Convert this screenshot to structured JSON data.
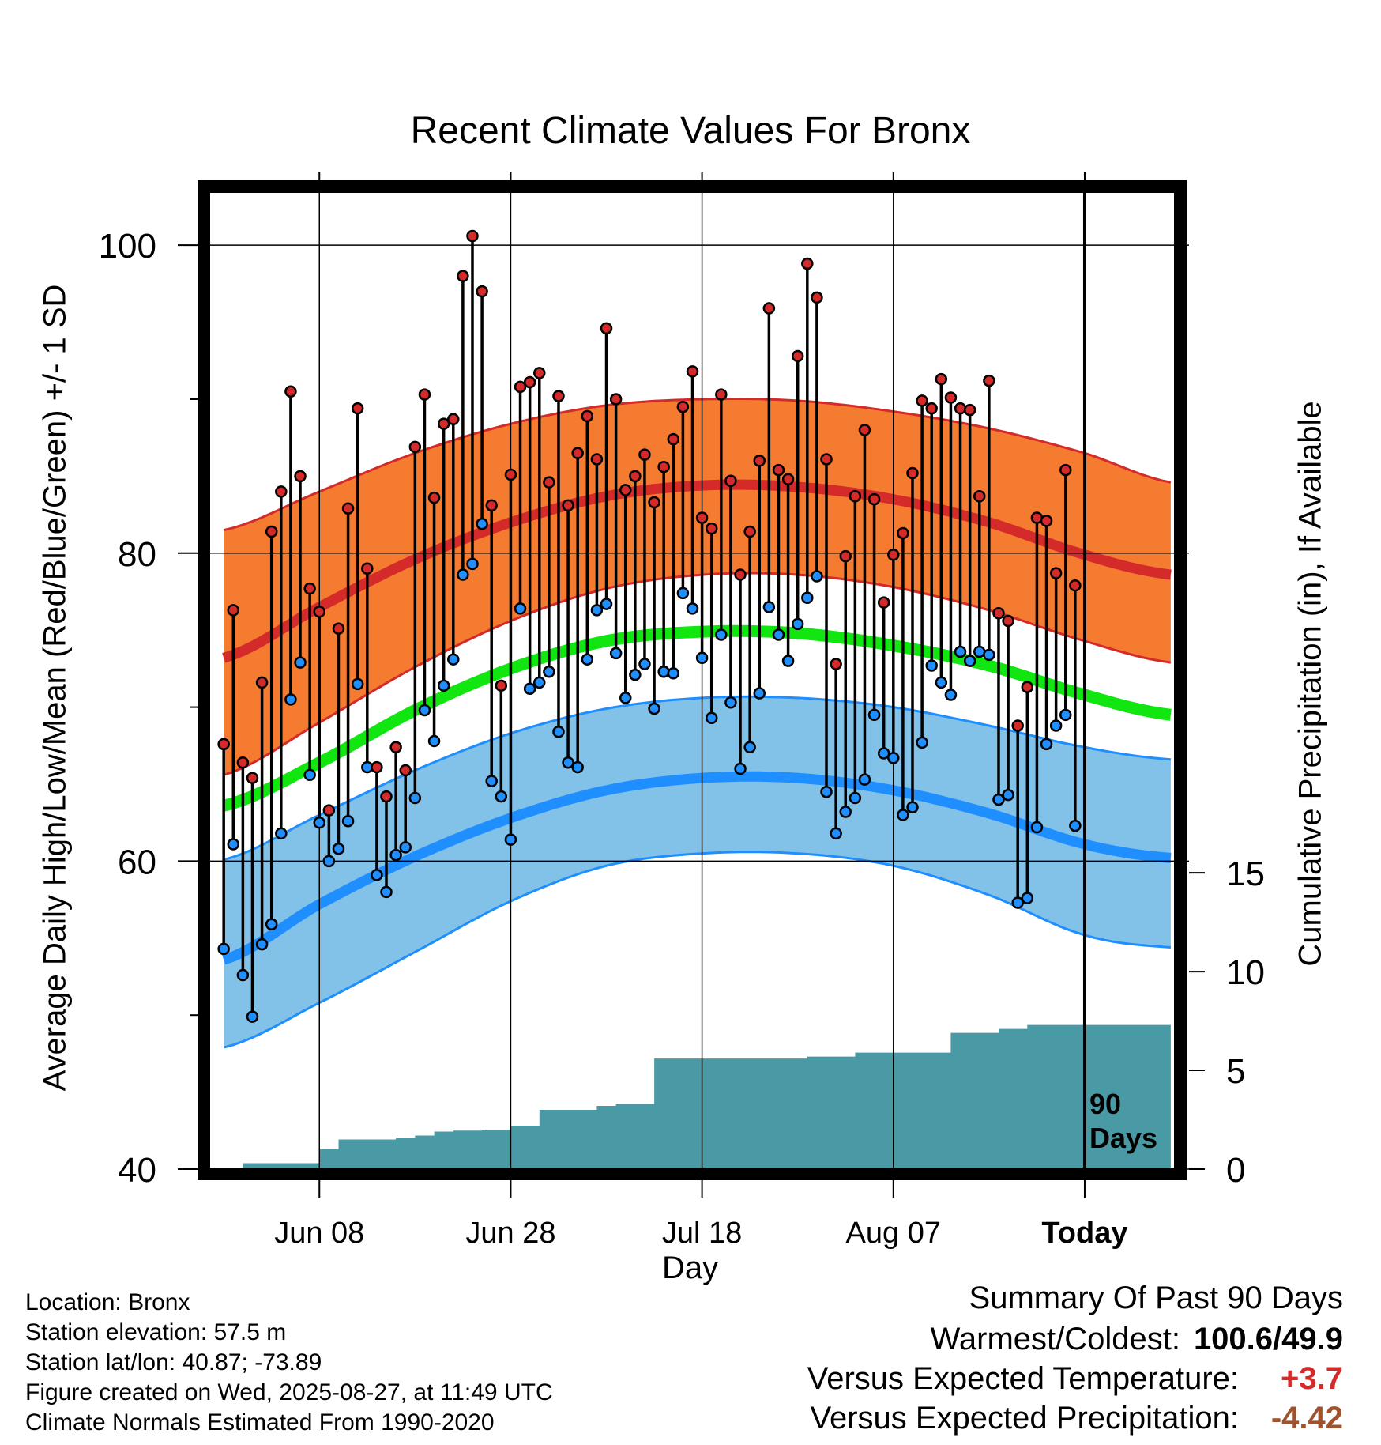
{
  "title": "Recent Climate Values For Bronx",
  "y_left_label": "Average Daily High/Low/Mean (Red/Blue/Green) +/- 1 SD",
  "y_right_label": "Cumulative Precipitation (in), If Available",
  "x_label": "Day",
  "marker_label": "90 Days",
  "info": {
    "location": "Location: Bronx",
    "elevation": "Station elevation: 57.5 m",
    "latlon": "Station lat/lon: 40.87; -73.89",
    "created": "Figure created on Wed, 2025-08-27, at 11:49 UTC",
    "normals": "Climate Normals Estimated From 1990-2020"
  },
  "summary": {
    "heading": "Summary Of Past 90 Days",
    "warmest_coldest_label": "Warmest/Coldest:",
    "warmest_coldest_value": "100.6/49.9",
    "temp_label": "Versus Expected Temperature:",
    "temp_value": "+3.7",
    "precip_label": "Versus Expected Precipitation:",
    "precip_value": "-4.42"
  },
  "colors": {
    "high_band": "#f47b30",
    "high_line": "#d42a2a",
    "low_band": "#82c1e8",
    "low_line": "#1f8eff",
    "mean_line": "#11e611",
    "precip": "#4a9aa5",
    "warm_value": "#d42a2a",
    "dry_value": "#a0522d"
  },
  "chart_data": {
    "type": "line",
    "x_ticks": [
      "Jun 08",
      "Jun 28",
      "Jul 18",
      "Aug 07",
      "Today"
    ],
    "x_tick_days": [
      -80,
      -60,
      -40,
      -20,
      0
    ],
    "xlim": [
      -91.5,
      9.5
    ],
    "ylim": [
      40,
      103.5
    ],
    "y_ticks": [
      40,
      60,
      80,
      100
    ],
    "y_right_ticks": [
      0,
      5,
      10,
      15
    ],
    "y_right_lim": [
      0,
      49.5
    ],
    "normals_x": [
      -90,
      -80,
      -70,
      -60,
      -50,
      -40,
      -30,
      -20,
      -10,
      0,
      9
    ],
    "normal_high": [
      73.2,
      76.5,
      79.6,
      82.0,
      83.7,
      84.4,
      84.3,
      83.5,
      82.0,
      79.9,
      78.6
    ],
    "normal_high_upper": [
      81.5,
      84.0,
      86.5,
      88.4,
      89.6,
      90.0,
      89.9,
      89.2,
      88.1,
      86.5,
      84.6
    ],
    "normal_high_lower": [
      65.6,
      69.0,
      72.6,
      75.6,
      77.7,
      78.6,
      78.6,
      77.8,
      76.3,
      74.3,
      72.9
    ],
    "normal_mean": [
      63.6,
      66.4,
      69.8,
      72.5,
      74.3,
      74.9,
      74.8,
      74.0,
      72.7,
      70.8,
      69.5
    ],
    "normal_low": [
      53.6,
      57.2,
      60.3,
      62.8,
      64.6,
      65.4,
      65.4,
      64.6,
      63.1,
      61.1,
      60.2
    ],
    "normal_low_upper": [
      60.1,
      63.0,
      65.9,
      68.3,
      69.9,
      70.6,
      70.6,
      70.0,
      68.8,
      67.4,
      66.6
    ],
    "normal_low_lower": [
      47.9,
      50.8,
      54.1,
      57.4,
      59.7,
      60.5,
      60.5,
      59.7,
      57.8,
      55.2,
      54.4
    ],
    "days": [
      -90,
      -89,
      -88,
      -87,
      -86,
      -85,
      -84,
      -83,
      -82,
      -81,
      -80,
      -79,
      -78,
      -77,
      -76,
      -75,
      -74,
      -73,
      -72,
      -71,
      -70,
      -69,
      -68,
      -67,
      -66,
      -65,
      -64,
      -63,
      -62,
      -61,
      -60,
      -59,
      -58,
      -57,
      -56,
      -55,
      -54,
      -53,
      -52,
      -51,
      -50,
      -49,
      -48,
      -47,
      -46,
      -45,
      -44,
      -43,
      -42,
      -41,
      -40,
      -39,
      -38,
      -37,
      -36,
      -35,
      -34,
      -33,
      -32,
      -31,
      -30,
      -29,
      -28,
      -27,
      -26,
      -25,
      -24,
      -23,
      -22,
      -21,
      -20,
      -19,
      -18,
      -17,
      -16,
      -15,
      -14,
      -13,
      -12,
      -11,
      -10,
      -9,
      -8,
      -7,
      -6,
      -5,
      -4,
      -3,
      -2,
      -1
    ],
    "daily_high": [
      67.6,
      76.3,
      66.4,
      65.4,
      71.6,
      81.4,
      84.0,
      90.5,
      85.0,
      77.7,
      76.2,
      63.3,
      75.1,
      82.9,
      89.4,
      79.0,
      66.1,
      64.2,
      67.4,
      65.9,
      86.9,
      90.3,
      83.6,
      88.4,
      88.7,
      98.0,
      100.6,
      97.0,
      83.1,
      71.4,
      85.1,
      90.8,
      91.1,
      91.7,
      84.6,
      90.2,
      83.1,
      86.5,
      88.9,
      86.1,
      94.6,
      90.0,
      84.1,
      85.0,
      86.4,
      83.3,
      85.6,
      87.4,
      89.5,
      91.8,
      82.3,
      81.6,
      90.3,
      84.7,
      78.6,
      81.4,
      86.0,
      95.9,
      85.4,
      84.8,
      92.8,
      98.8,
      96.6,
      86.1,
      72.8,
      79.8,
      83.7,
      88.0,
      83.5,
      76.8,
      79.9,
      81.3,
      85.2,
      89.9,
      89.4,
      91.3,
      90.1,
      89.4,
      89.3,
      83.7,
      91.2,
      76.1,
      75.6,
      68.8,
      71.3,
      82.3,
      82.1,
      78.7,
      85.4,
      77.9
    ],
    "daily_low": [
      54.3,
      61.1,
      52.6,
      49.9,
      54.6,
      55.9,
      61.8,
      70.5,
      72.9,
      65.6,
      62.5,
      60.0,
      60.8,
      62.6,
      71.5,
      66.1,
      59.1,
      58.0,
      60.4,
      60.9,
      64.1,
      69.8,
      67.8,
      71.4,
      73.1,
      78.6,
      79.3,
      81.9,
      65.2,
      64.2,
      61.4,
      76.4,
      71.2,
      71.6,
      72.3,
      68.4,
      66.4,
      66.1,
      73.1,
      76.3,
      76.7,
      73.5,
      70.6,
      72.1,
      72.8,
      69.9,
      72.3,
      72.2,
      77.4,
      76.4,
      73.2,
      69.3,
      74.7,
      70.3,
      66.0,
      67.4,
      70.9,
      76.5,
      74.7,
      73.0,
      75.4,
      77.1,
      78.5,
      64.5,
      61.8,
      63.2,
      64.1,
      65.3,
      69.5,
      67.0,
      66.7,
      63.0,
      63.5,
      67.7,
      72.7,
      71.6,
      70.8,
      73.6,
      73.0,
      73.6,
      73.4,
      64.0,
      64.3,
      57.3,
      57.6,
      62.2,
      67.6,
      68.8,
      69.5,
      62.3
    ],
    "precip_steps_x": [
      -90,
      -88,
      -84,
      -82,
      -80,
      -78,
      -76,
      -72,
      -70,
      -68,
      -66,
      -63,
      -60,
      -57,
      -53,
      -51,
      -49,
      -45,
      -43,
      -39,
      -29,
      -24,
      -19,
      -14,
      -9,
      -6,
      -4,
      9
    ],
    "precip_steps_y": [
      0.0,
      0.3,
      0.3,
      0.3,
      1.0,
      1.5,
      1.5,
      1.6,
      1.7,
      1.9,
      1.95,
      2.0,
      2.2,
      3.0,
      3.0,
      3.2,
      3.3,
      5.6,
      5.6,
      5.6,
      5.7,
      5.9,
      5.9,
      6.9,
      7.1,
      7.3,
      7.3,
      7.3
    ]
  }
}
